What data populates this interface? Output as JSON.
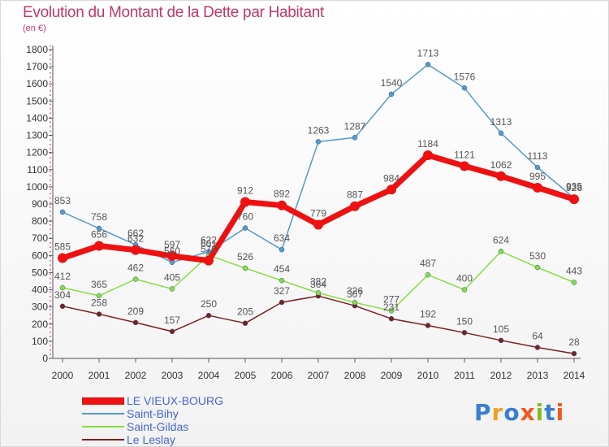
{
  "title": "Evolution du Montant de la Dette par Habitant",
  "unit": "(en €)",
  "logo": {
    "text": "Proxiti",
    "letter_colors": [
      "#3a7fd0",
      "#f0a020",
      "#3a7fd0",
      "#f05a20",
      "#88bb22",
      "#3a7fd0",
      "#f05a20"
    ]
  },
  "chart_data": {
    "type": "line",
    "x": [
      "2000",
      "2001",
      "2002",
      "2003",
      "2004",
      "2005",
      "2006",
      "2007",
      "2008",
      "2009",
      "2010",
      "2011",
      "2012",
      "2013",
      "2014"
    ],
    "ylim": [
      0,
      1800
    ],
    "yticks": [
      0,
      100,
      200,
      300,
      400,
      500,
      600,
      700,
      800,
      900,
      1000,
      1100,
      1200,
      1300,
      1400,
      1500,
      1600,
      1700,
      1800
    ],
    "grid": false,
    "legend_position": "bottom-left",
    "series": [
      {
        "name": "LE VIEUX-BOURG",
        "color": "#ee1111",
        "values": [
          585,
          656,
          632,
          597,
          570,
          912,
          892,
          779,
          887,
          984,
          1184,
          1121,
          1062,
          995,
          928
        ]
      },
      {
        "name": "Saint-Bihy",
        "color": "#5599cc",
        "values": [
          853,
          758,
          662,
          560,
          622,
          760,
          634,
          1263,
          1287,
          1540,
          1713,
          1576,
          1313,
          1113,
          935
        ]
      },
      {
        "name": "Saint-Gildas",
        "color": "#88dd44",
        "values": [
          412,
          365,
          462,
          405,
          601,
          526,
          454,
          382,
          326,
          277,
          487,
          400,
          624,
          530,
          443
        ]
      },
      {
        "name": "Le Leslay",
        "color": "#7a2020",
        "values": [
          304,
          258,
          209,
          157,
          250,
          205,
          327,
          364,
          307,
          231,
          192,
          150,
          105,
          64,
          28
        ]
      }
    ]
  }
}
